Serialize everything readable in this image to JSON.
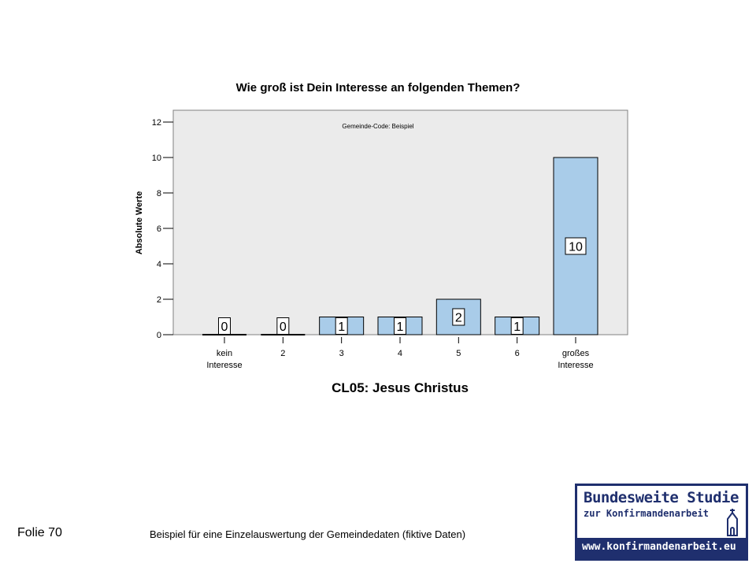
{
  "chart_data": {
    "type": "bar",
    "title": "Wie groß ist Dein Interesse an folgenden Themen?",
    "xlabel": "CL05: Jesus Christus",
    "ylabel": "Absolute Werte",
    "annotation": "Gemeinde-Code: Beispiel",
    "categories": [
      [
        "kein",
        "Interesse"
      ],
      [
        "2"
      ],
      [
        "3"
      ],
      [
        "4"
      ],
      [
        "5"
      ],
      [
        "6"
      ],
      [
        "großes",
        "Interesse"
      ]
    ],
    "values": [
      0,
      0,
      1,
      1,
      2,
      1,
      10
    ],
    "data_labels": [
      "0",
      "0",
      "1",
      "1",
      "2",
      "1",
      "10"
    ],
    "ylim": [
      0,
      12
    ],
    "yticks": [
      0,
      2,
      4,
      6,
      8,
      10,
      12
    ],
    "bar_color": "#a9cce9",
    "plot_background": "#ebebeb"
  },
  "footer": {
    "slide_number": "Folie 70",
    "caption": "Beispiel für eine Einzelauswertung der Gemeindedaten (fiktive Daten)"
  },
  "logo": {
    "line1": "Bundesweite Studie",
    "line2": "zur Konfirmandenarbeit",
    "url": "www.konfirmandenarbeit.eu",
    "church_icon": "church-icon"
  }
}
